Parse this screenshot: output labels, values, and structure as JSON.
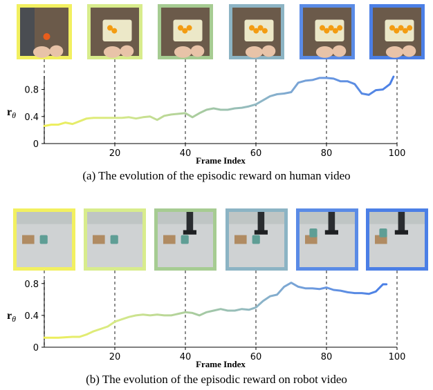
{
  "chart_data": [
    {
      "type": "line",
      "caption": "(a) The evolution of the episodic reward on human video",
      "xlabel": "Frame Index",
      "ylabel": "r",
      "ylabel_sub": "θ",
      "xlim": [
        0,
        100
      ],
      "ylim": [
        0,
        1.0
      ],
      "xticks": [
        20,
        40,
        60,
        80,
        100
      ],
      "yticks": [
        0,
        0.4,
        0.8
      ],
      "grid": false,
      "frame_markers": [
        0,
        20,
        40,
        60,
        80,
        100
      ],
      "frame_colors": [
        "#f2f060",
        "#d8ec8c",
        "#a6cc92",
        "#8cb4c4",
        "#5a8be6",
        "#4b7fe6"
      ],
      "frame_descriptions": [
        "hands near kitchen counter",
        "cutting board with orange",
        "knife slicing orange",
        "orange pieces on board",
        "arranging orange slices",
        "orange slices arranged"
      ],
      "series": [
        {
          "x": [
            0,
            2,
            4,
            6,
            8,
            10,
            12,
            14,
            16,
            18,
            20,
            22,
            24,
            26,
            28,
            30,
            32,
            34,
            36,
            38,
            40,
            42,
            44,
            46,
            48,
            50,
            52,
            54,
            56,
            58,
            60,
            62,
            64,
            66,
            68,
            70,
            72,
            74,
            76,
            78,
            80,
            82,
            84,
            86,
            88,
            90,
            92,
            94,
            96,
            98,
            99
          ],
          "y": [
            0.26,
            0.28,
            0.28,
            0.31,
            0.29,
            0.33,
            0.37,
            0.38,
            0.38,
            0.38,
            0.38,
            0.38,
            0.39,
            0.37,
            0.39,
            0.4,
            0.35,
            0.41,
            0.43,
            0.44,
            0.45,
            0.39,
            0.45,
            0.5,
            0.52,
            0.5,
            0.5,
            0.52,
            0.53,
            0.55,
            0.58,
            0.64,
            0.7,
            0.73,
            0.74,
            0.76,
            0.9,
            0.93,
            0.94,
            0.97,
            0.97,
            0.96,
            0.92,
            0.92,
            0.88,
            0.74,
            0.72,
            0.79,
            0.8,
            0.88,
            0.99
          ]
        }
      ]
    },
    {
      "type": "line",
      "caption": "(b) The evolution of the episodic reward on robot video",
      "xlabel": "Frame Index",
      "ylabel": "r",
      "ylabel_sub": "θ",
      "xlim": [
        0,
        100
      ],
      "ylim": [
        0,
        0.85
      ],
      "xticks": [
        20,
        40,
        60,
        80,
        100
      ],
      "yticks": [
        0,
        0.4,
        0.8
      ],
      "grid": false,
      "frame_markers": [
        0,
        20,
        40,
        60,
        80,
        100
      ],
      "frame_colors": [
        "#f2f060",
        "#d8ec8c",
        "#a6cc92",
        "#8cb4c4",
        "#5a8be6",
        "#4b7fe6"
      ],
      "frame_descriptions": [
        "table with cup and box",
        "cup and box on table",
        "robot gripper above box",
        "robot grasping cup",
        "robot moving cup",
        "cup placed on box"
      ],
      "series": [
        {
          "x": [
            0,
            4,
            8,
            10,
            12,
            14,
            16,
            18,
            20,
            22,
            24,
            26,
            28,
            30,
            32,
            34,
            36,
            38,
            40,
            42,
            44,
            46,
            48,
            50,
            52,
            54,
            56,
            58,
            60,
            62,
            64,
            66,
            68,
            70,
            72,
            74,
            76,
            78,
            80,
            82,
            84,
            86,
            88,
            90,
            92,
            94,
            96,
            97
          ],
          "y": [
            0.12,
            0.12,
            0.13,
            0.13,
            0.16,
            0.2,
            0.23,
            0.26,
            0.32,
            0.35,
            0.38,
            0.4,
            0.41,
            0.4,
            0.41,
            0.4,
            0.4,
            0.42,
            0.44,
            0.43,
            0.4,
            0.44,
            0.46,
            0.48,
            0.46,
            0.46,
            0.48,
            0.47,
            0.5,
            0.58,
            0.64,
            0.66,
            0.76,
            0.81,
            0.76,
            0.74,
            0.74,
            0.73,
            0.75,
            0.72,
            0.71,
            0.69,
            0.68,
            0.68,
            0.67,
            0.7,
            0.79,
            0.79
          ]
        }
      ]
    }
  ]
}
